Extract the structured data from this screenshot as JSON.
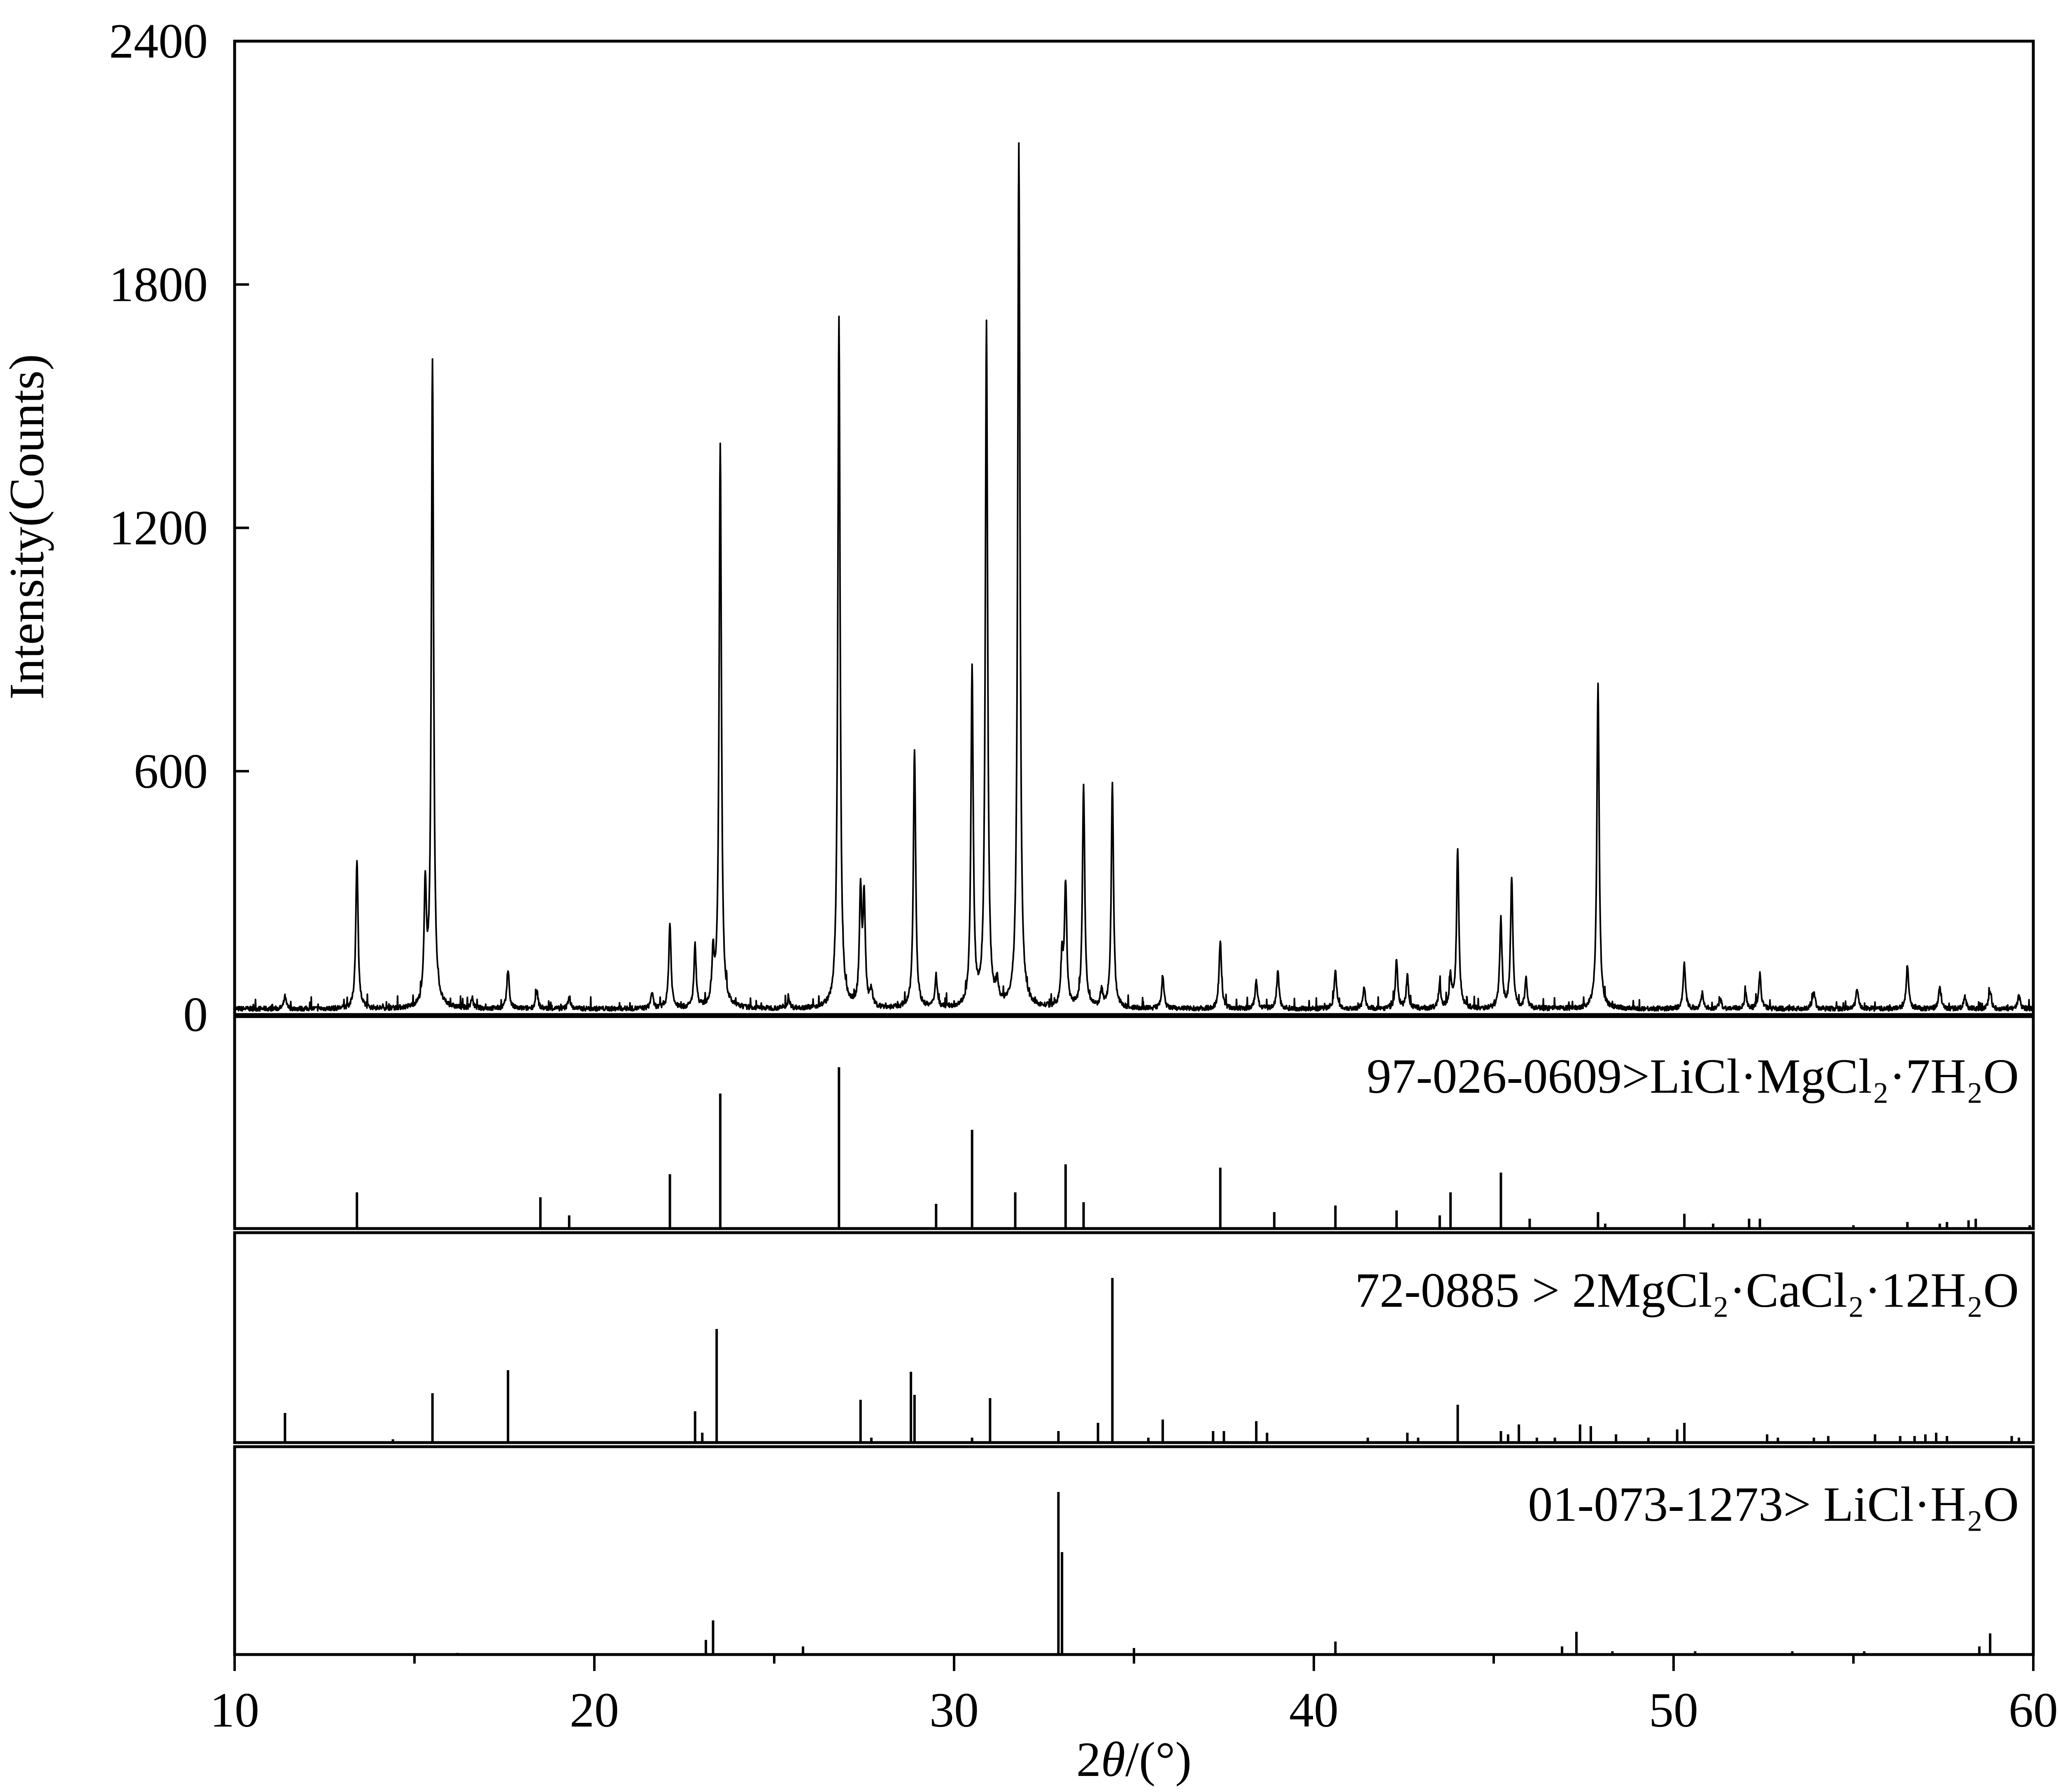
{
  "chart_data": {
    "type": "line",
    "xlabel_italic": "θ",
    "xlabel_prefix": "2",
    "xlabel_suffix": "/(°)",
    "ylabel": "Intensity(Counts)",
    "xlim": [
      10,
      60
    ],
    "ylim": [
      0,
      2400
    ],
    "x_ticks": [
      10,
      20,
      30,
      40,
      50,
      60
    ],
    "y_ticks": [
      0,
      600,
      1200,
      1800,
      2400
    ],
    "line_color": "#000000",
    "measured_peaks": [
      {
        "x": 11.4,
        "y": 30
      },
      {
        "x": 13.4,
        "y": 370
      },
      {
        "x": 15.3,
        "y": 290
      },
      {
        "x": 15.5,
        "y": 1590
      },
      {
        "x": 16.6,
        "y": 25
      },
      {
        "x": 17.6,
        "y": 95
      },
      {
        "x": 18.4,
        "y": 45
      },
      {
        "x": 19.3,
        "y": 30
      },
      {
        "x": 21.6,
        "y": 40
      },
      {
        "x": 22.1,
        "y": 210
      },
      {
        "x": 22.8,
        "y": 150
      },
      {
        "x": 23.3,
        "y": 120
      },
      {
        "x": 23.5,
        "y": 1390
      },
      {
        "x": 25.4,
        "y": 25
      },
      {
        "x": 26.8,
        "y": 1700
      },
      {
        "x": 27.4,
        "y": 280
      },
      {
        "x": 27.5,
        "y": 260
      },
      {
        "x": 27.7,
        "y": 40
      },
      {
        "x": 28.9,
        "y": 640
      },
      {
        "x": 29.5,
        "y": 80
      },
      {
        "x": 30.5,
        "y": 830
      },
      {
        "x": 30.9,
        "y": 1680
      },
      {
        "x": 31.2,
        "y": 50
      },
      {
        "x": 31.8,
        "y": 2130
      },
      {
        "x": 33.0,
        "y": 120
      },
      {
        "x": 33.1,
        "y": 300
      },
      {
        "x": 33.6,
        "y": 550
      },
      {
        "x": 34.1,
        "y": 40
      },
      {
        "x": 34.4,
        "y": 550
      },
      {
        "x": 35.8,
        "y": 80
      },
      {
        "x": 37.4,
        "y": 170
      },
      {
        "x": 38.4,
        "y": 70
      },
      {
        "x": 39.0,
        "y": 95
      },
      {
        "x": 40.6,
        "y": 100
      },
      {
        "x": 41.4,
        "y": 50
      },
      {
        "x": 42.3,
        "y": 120
      },
      {
        "x": 42.6,
        "y": 80
      },
      {
        "x": 43.5,
        "y": 60
      },
      {
        "x": 43.8,
        "y": 75
      },
      {
        "x": 44.0,
        "y": 390
      },
      {
        "x": 45.2,
        "y": 220
      },
      {
        "x": 45.5,
        "y": 320
      },
      {
        "x": 45.9,
        "y": 70
      },
      {
        "x": 47.9,
        "y": 800
      },
      {
        "x": 50.3,
        "y": 110
      },
      {
        "x": 50.8,
        "y": 40
      },
      {
        "x": 51.3,
        "y": 25
      },
      {
        "x": 52.0,
        "y": 40
      },
      {
        "x": 52.4,
        "y": 85
      },
      {
        "x": 53.9,
        "y": 45
      },
      {
        "x": 55.1,
        "y": 50
      },
      {
        "x": 56.5,
        "y": 110
      },
      {
        "x": 57.4,
        "y": 55
      },
      {
        "x": 58.1,
        "y": 30
      },
      {
        "x": 58.8,
        "y": 45
      },
      {
        "x": 59.6,
        "y": 35
      }
    ],
    "reference_patterns": [
      {
        "label": "97-026-0609>LiCl·MgCl₂·7H₂O",
        "lines": [
          [
            13.4,
            22
          ],
          [
            18.5,
            19
          ],
          [
            19.3,
            8
          ],
          [
            22.1,
            33
          ],
          [
            23.5,
            82
          ],
          [
            26.8,
            98
          ],
          [
            29.5,
            15
          ],
          [
            30.5,
            60
          ],
          [
            31.7,
            22
          ],
          [
            33.1,
            39
          ],
          [
            33.6,
            16
          ],
          [
            37.4,
            37
          ],
          [
            38.9,
            10
          ],
          [
            40.6,
            14
          ],
          [
            42.3,
            11
          ],
          [
            43.5,
            8
          ],
          [
            43.8,
            22
          ],
          [
            45.2,
            34
          ],
          [
            46.0,
            6
          ],
          [
            47.9,
            10
          ],
          [
            48.1,
            3
          ],
          [
            50.3,
            9
          ],
          [
            51.1,
            3
          ],
          [
            52.1,
            6
          ],
          [
            52.4,
            6
          ],
          [
            55.0,
            2
          ],
          [
            56.5,
            4
          ],
          [
            57.4,
            3
          ],
          [
            57.6,
            4
          ],
          [
            58.2,
            5
          ],
          [
            58.4,
            6
          ],
          [
            59.9,
            2
          ]
        ]
      },
      {
        "label": "72-0885 > 2MgCl₂·CaCl₂·12H₂O",
        "lines": [
          [
            11.4,
            18
          ],
          [
            14.4,
            2
          ],
          [
            15.5,
            30
          ],
          [
            17.6,
            44
          ],
          [
            22.8,
            19
          ],
          [
            23.0,
            6
          ],
          [
            23.4,
            69
          ],
          [
            27.4,
            26
          ],
          [
            27.7,
            3
          ],
          [
            28.8,
            43
          ],
          [
            28.9,
            29
          ],
          [
            30.5,
            3
          ],
          [
            31.0,
            27
          ],
          [
            32.9,
            7
          ],
          [
            34.0,
            12
          ],
          [
            34.4,
            100
          ],
          [
            35.4,
            3
          ],
          [
            35.8,
            14
          ],
          [
            37.2,
            7
          ],
          [
            37.5,
            7
          ],
          [
            38.4,
            13
          ],
          [
            38.7,
            6
          ],
          [
            41.5,
            3
          ],
          [
            42.6,
            6
          ],
          [
            42.9,
            3
          ],
          [
            44.0,
            23
          ],
          [
            45.2,
            7
          ],
          [
            45.4,
            5
          ],
          [
            45.7,
            11
          ],
          [
            46.2,
            3
          ],
          [
            46.7,
            3
          ],
          [
            47.4,
            11
          ],
          [
            47.7,
            10
          ],
          [
            48.4,
            5
          ],
          [
            49.3,
            3
          ],
          [
            50.1,
            8
          ],
          [
            50.3,
            12
          ],
          [
            52.6,
            5
          ],
          [
            52.9,
            3
          ],
          [
            53.9,
            3
          ],
          [
            54.3,
            4
          ],
          [
            55.6,
            5
          ],
          [
            56.3,
            4
          ],
          [
            56.7,
            4
          ],
          [
            57.0,
            5
          ],
          [
            57.3,
            6
          ],
          [
            57.6,
            4
          ],
          [
            59.4,
            4
          ],
          [
            59.6,
            3
          ]
        ]
      },
      {
        "label": "01-073-1273> LiCl·H₂O",
        "lines": [
          [
            16.2,
            1
          ],
          [
            23.1,
            9
          ],
          [
            23.3,
            21
          ],
          [
            25.8,
            5
          ],
          [
            32.9,
            100
          ],
          [
            33.0,
            63
          ],
          [
            35.0,
            4
          ],
          [
            40.6,
            8
          ],
          [
            46.9,
            5
          ],
          [
            47.3,
            14
          ],
          [
            48.3,
            2
          ],
          [
            50.6,
            2
          ],
          [
            53.3,
            2
          ],
          [
            55.3,
            2
          ],
          [
            58.5,
            5
          ],
          [
            58.8,
            13
          ]
        ]
      }
    ]
  }
}
